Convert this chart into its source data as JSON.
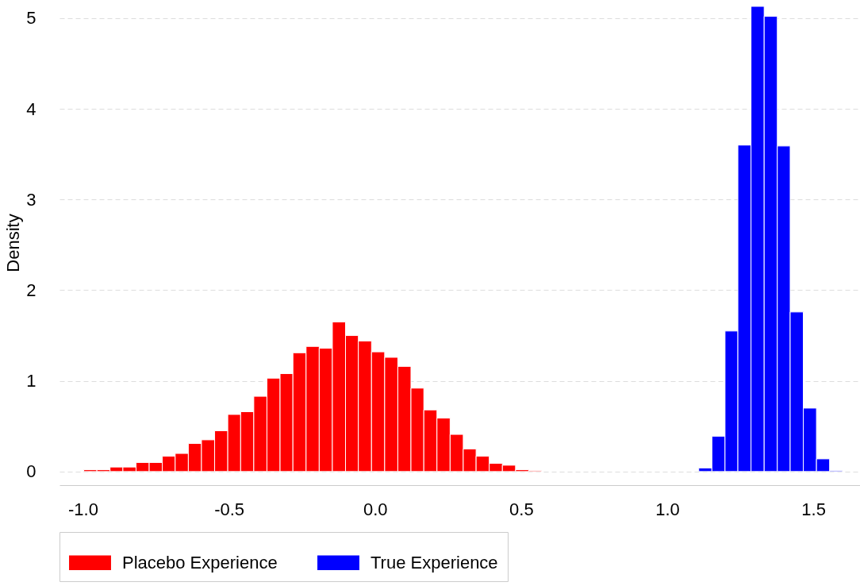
{
  "chart_data": {
    "type": "histogram",
    "ylabel": "Density",
    "bins": [
      -0.997,
      -0.952,
      -0.907,
      -0.863,
      -0.818,
      -0.773,
      -0.728,
      -0.684,
      -0.639,
      -0.594,
      -0.549,
      -0.504,
      -0.46,
      -0.415,
      -0.37,
      -0.325,
      -0.281,
      -0.236,
      -0.191,
      -0.146,
      -0.101,
      -0.057,
      -0.012,
      0.033,
      0.078,
      0.123,
      0.167,
      0.212,
      0.257,
      0.302,
      0.346,
      0.391,
      0.436,
      0.481,
      0.526,
      0.57,
      0.615,
      0.66,
      0.705,
      0.75,
      0.794,
      0.839,
      0.884,
      0.929,
      0.973,
      1.018,
      1.063,
      1.108,
      1.153,
      1.198,
      1.242,
      1.287,
      1.332,
      1.377,
      1.421,
      1.466,
      1.511,
      1.556,
      1.6
    ],
    "series": [
      {
        "name": "Placebo Experience",
        "color": "#ff0000",
        "values": [
          0.02,
          0.02,
          0.05,
          0.05,
          0.1,
          0.1,
          0.17,
          0.2,
          0.31,
          0.35,
          0.45,
          0.63,
          0.66,
          0.83,
          1.03,
          1.08,
          1.31,
          1.38,
          1.36,
          1.65,
          1.5,
          1.44,
          1.32,
          1.26,
          1.16,
          0.92,
          0.68,
          0.59,
          0.41,
          0.25,
          0.17,
          0.09,
          0.07,
          0.02,
          0.01,
          null,
          null,
          null,
          null,
          null,
          null,
          null,
          null,
          null,
          null,
          null,
          null,
          null,
          null,
          null,
          null,
          null,
          null,
          null,
          null,
          null,
          null,
          null
        ]
      },
      {
        "name": "True Experience",
        "color": "#0000ff",
        "values": [
          null,
          null,
          null,
          null,
          null,
          null,
          null,
          null,
          null,
          null,
          null,
          null,
          null,
          null,
          null,
          null,
          null,
          null,
          null,
          null,
          null,
          null,
          null,
          null,
          null,
          null,
          null,
          null,
          null,
          null,
          null,
          null,
          null,
          null,
          null,
          null,
          null,
          null,
          null,
          null,
          null,
          null,
          null,
          null,
          null,
          null,
          null,
          0.04,
          0.39,
          1.55,
          3.6,
          5.13,
          5.02,
          3.59,
          1.76,
          0.7,
          0.14,
          0.01
        ]
      }
    ],
    "xlim": [
      -1.08,
      1.66
    ],
    "xticks": [
      {
        "value": -1.0,
        "label": "-1.0"
      },
      {
        "value": -0.5,
        "label": "-0.5"
      },
      {
        "value": 0.0,
        "label": "0.0"
      },
      {
        "value": 0.5,
        "label": "0.5"
      },
      {
        "value": 1.0,
        "label": "1.0"
      },
      {
        "value": 1.5,
        "label": "1.5"
      }
    ],
    "ylim": [
      -0.15,
      5.2
    ],
    "yticks": [
      0,
      1,
      2,
      3,
      4,
      5
    ],
    "grid": "y",
    "legend": "bottom"
  }
}
